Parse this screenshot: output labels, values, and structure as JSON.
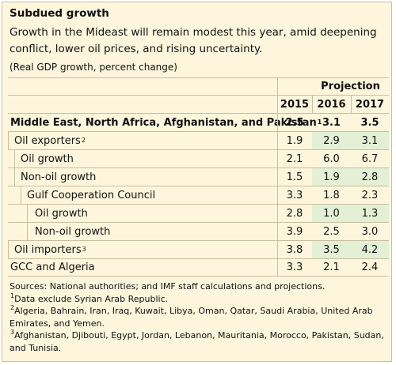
{
  "title": "Subdued growth",
  "subtitle": "Growth in the Mideast will remain modest this year, amid deepening conflict, lower oil prices, and rising uncertainty.",
  "units": "(Real GDP growth, percent change)",
  "table": {
    "projection_header": "Projection",
    "years": [
      "2015",
      "2016",
      "2017"
    ],
    "rows": [
      {
        "label": "Middle East, North Africa, Afghanistan, and Pakistan",
        "sup": "1",
        "values": [
          "2.5",
          "3.1",
          "3.5"
        ]
      },
      {
        "label": "Oil exporters",
        "sup": "2",
        "values": [
          "1.9",
          "2.9",
          "3.1"
        ]
      },
      {
        "label": "Oil growth",
        "sup": "",
        "values": [
          "2.1",
          "6.0",
          "6.7"
        ]
      },
      {
        "label": "Non-oil growth",
        "sup": "",
        "values": [
          "1.5",
          "1.9",
          "2.8"
        ]
      },
      {
        "label": "Gulf Cooperation Council",
        "sup": "",
        "values": [
          "3.3",
          "1.8",
          "2.3"
        ]
      },
      {
        "label": "Oil growth",
        "sup": "",
        "values": [
          "2.8",
          "1.0",
          "1.3"
        ]
      },
      {
        "label": "Non-oil growth",
        "sup": "",
        "values": [
          "3.9",
          "2.5",
          "3.0"
        ]
      },
      {
        "label": "Oil importers",
        "sup": "3",
        "values": [
          "3.8",
          "3.5",
          "4.2"
        ]
      },
      {
        "label": "GCC and Algeria",
        "sup": "",
        "values": [
          "3.3",
          "2.1",
          "2.4"
        ]
      }
    ]
  },
  "notes": {
    "sources": "Sources: National authorities; and IMF staff calculations and projections.",
    "note1_mark": "1",
    "note1": "Data exclude Syrian Arab Republic.",
    "note2_mark": "2",
    "note2": "Algeria, Bahrain, Iran, Iraq, Kuwait, Libya, Oman, Qatar, Saudi Arabia, United Arab Emirates, and Yemen.",
    "note3_mark": "3",
    "note3": "Afghanistan, Djibouti, Egypt, Jordan, Lebanon, Mauritania, Morocco, Pakistan, Sudan, and Tunisia."
  },
  "colors": {
    "panel_background": "#fdf6dc",
    "highlight_green": "#e3f0d5",
    "rule": "#c8bfa0"
  }
}
